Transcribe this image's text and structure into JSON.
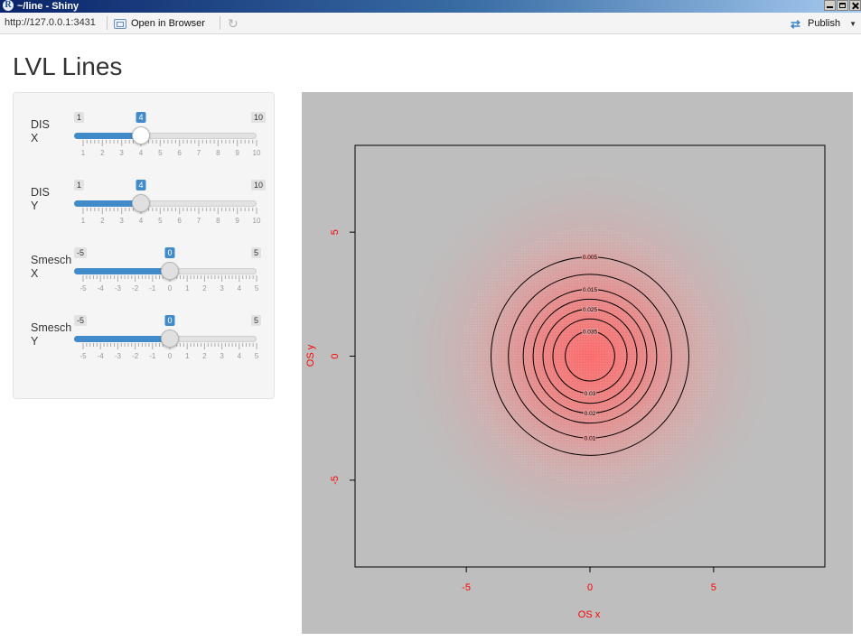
{
  "window": {
    "title": "~/line - Shiny",
    "logo_letter": "R"
  },
  "toolbar": {
    "url": "http://127.0.0.1:3431",
    "open_in_browser": "Open in Browser",
    "publish": "Publish"
  },
  "page": {
    "title": "LVL Lines"
  },
  "sliders": [
    {
      "label_line1": "DIS",
      "label_line2": "X",
      "min": 1,
      "max": 10,
      "value": 4,
      "step_labels": [
        "1",
        "2",
        "3",
        "4",
        "5",
        "6",
        "7",
        "8",
        "9",
        "10"
      ],
      "active": true
    },
    {
      "label_line1": "DIS",
      "label_line2": "Y",
      "min": 1,
      "max": 10,
      "value": 4,
      "step_labels": [
        "1",
        "2",
        "3",
        "4",
        "5",
        "6",
        "7",
        "8",
        "9",
        "10"
      ],
      "active": false
    },
    {
      "label_line1": "Smesch",
      "label_line2": "X",
      "min": -5,
      "max": 5,
      "value": 0,
      "step_labels": [
        "-5",
        "-4",
        "-3",
        "-2",
        "-1",
        "0",
        "1",
        "2",
        "3",
        "4",
        "5"
      ],
      "active": false
    },
    {
      "label_line1": "Smesch",
      "label_line2": "Y",
      "min": -5,
      "max": 5,
      "value": 0,
      "step_labels": [
        "-5",
        "-4",
        "-3",
        "-2",
        "-1",
        "0",
        "1",
        "2",
        "3",
        "4",
        "5"
      ],
      "active": false
    }
  ],
  "colors": {
    "accent": "#428bca",
    "plot_background": "#bebebe",
    "axis_label": "#ff0000",
    "density_fill": "#ff6666"
  },
  "chart_data": {
    "type": "contour",
    "xlabel": "OS x",
    "ylabel": "OS y",
    "xlim": [
      -9.5,
      9.5
    ],
    "ylim": [
      -8.5,
      8.5
    ],
    "x_ticks": [
      -5,
      0,
      5
    ],
    "y_ticks": [
      -5,
      0,
      5
    ],
    "center": [
      0,
      0
    ],
    "sd": [
      4,
      4
    ],
    "contour_levels": [
      {
        "label": "0.005",
        "radius": 4.0
      },
      {
        "label": "0.01",
        "radius": 3.3
      },
      {
        "label": "0.015",
        "radius": 2.7
      },
      {
        "label": "0.02",
        "radius": 2.3
      },
      {
        "label": "0.025",
        "radius": 1.9
      },
      {
        "label": "0.03",
        "radius": 1.5
      },
      {
        "label": "0.035",
        "radius": 1.0
      }
    ]
  }
}
